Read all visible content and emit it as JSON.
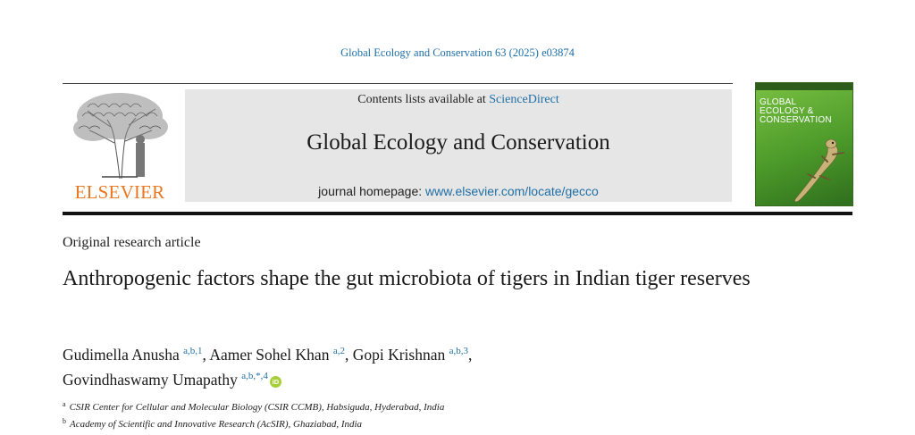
{
  "citation": "Global Ecology and Conservation 63 (2025) e03874",
  "publisher": {
    "wordmark": "ELSEVIER",
    "wordmark_color": "#e87722",
    "logo_icon": "elsevier-tree-logo"
  },
  "masthead": {
    "contents_prefix": "Contents lists available at",
    "contents_link": "ScienceDirect",
    "journal_title": "Global Ecology and Conservation",
    "homepage_prefix": "journal homepage:",
    "homepage_link": "www.elsevier.com/locate/gecco",
    "background": "#e6e6e6"
  },
  "cover": {
    "line1": "GLOBAL",
    "line2": "ECOLOGY &",
    "line3": "CONSERVATION",
    "image_icon": "gecko-cover-icon"
  },
  "article": {
    "type": "Original research article",
    "title": "Anthropogenic factors shape the gut microbiota of tigers in Indian tiger reserves"
  },
  "authors": [
    {
      "name": "Gudimella Anusha",
      "sup": "a,b,1",
      "sep": ", "
    },
    {
      "name": "Aamer Sohel Khan",
      "sup": "a,2",
      "sep": ", "
    },
    {
      "name": "Gopi Krishnan",
      "sup": "a,b,3",
      "sep": ","
    },
    {
      "name": "Govindhaswamy Umapathy",
      "sup": "a,b,*,4",
      "sep": ""
    }
  ],
  "orcid_label": "iD",
  "affiliations": [
    {
      "key": "a",
      "text": "CSIR Center for Cellular and Molecular Biology (CSIR CCMB), Habsiguda, Hyderabad, India"
    },
    {
      "key": "b",
      "text": "Academy of Scientific and Innovative Research (AcSIR), Ghaziabad, India"
    }
  ],
  "colors": {
    "link": "#1f6fa6",
    "orcid": "#a6ce39"
  }
}
